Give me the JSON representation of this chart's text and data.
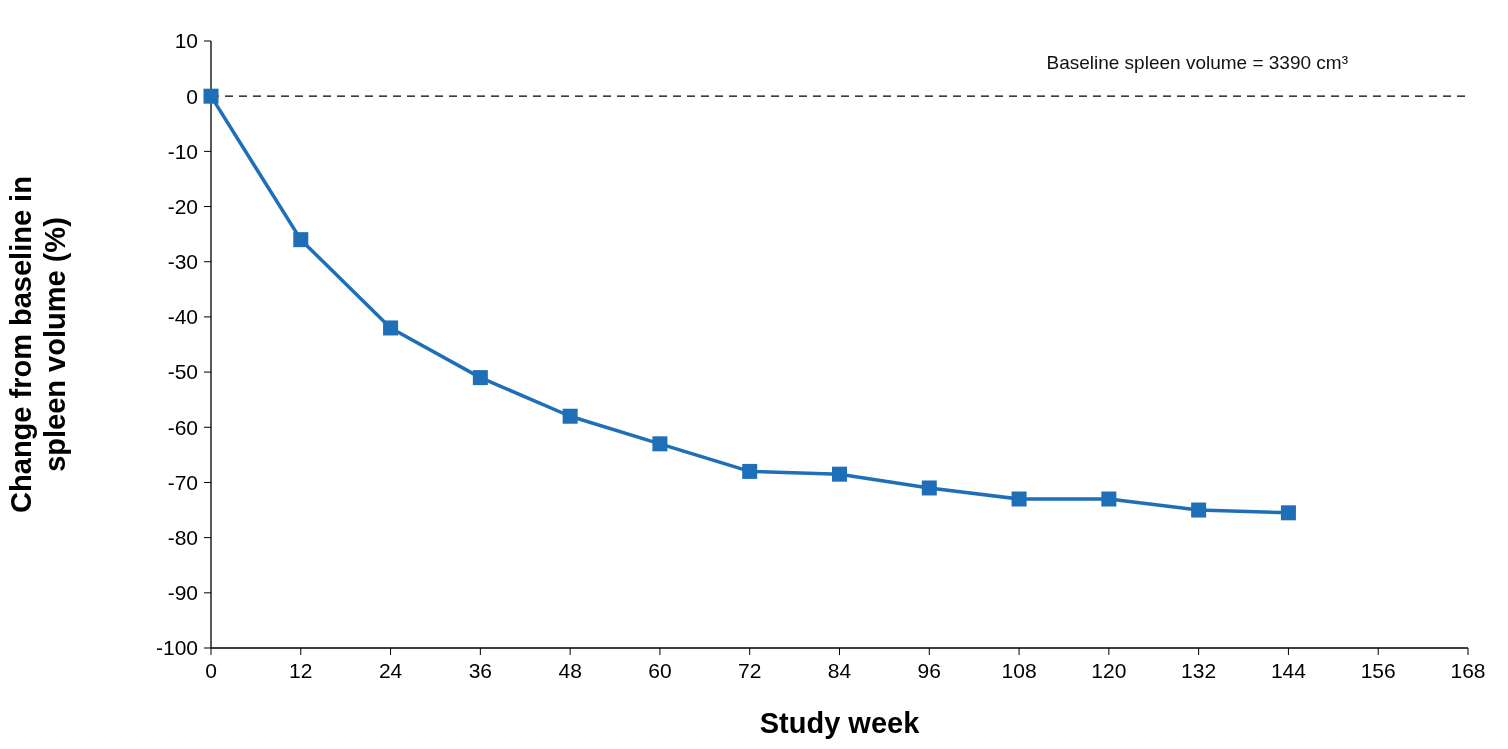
{
  "chart_data": {
    "type": "line",
    "xlabel": "Study week",
    "ylabel": "Change from baseline in spleen volume (%)",
    "x": [
      0,
      12,
      24,
      36,
      48,
      60,
      72,
      84,
      96,
      108,
      120,
      132,
      144
    ],
    "series": [
      {
        "color": "#1f6fb8",
        "values": [
          0,
          -26,
          -42,
          -51,
          -58,
          -63,
          -68,
          -68.5,
          -71,
          -73,
          -73,
          -75,
          -75.5
        ]
      }
    ],
    "xlim": [
      0,
      168
    ],
    "xticks": [
      0,
      12,
      24,
      36,
      48,
      60,
      72,
      84,
      96,
      108,
      120,
      132,
      144,
      156,
      168
    ],
    "ylim": [
      -100,
      10
    ],
    "yticks": [
      -100,
      -90,
      -80,
      -70,
      -60,
      -50,
      -40,
      -30,
      -20,
      -10,
      0,
      10
    ],
    "ref_lines": [
      {
        "axis": "y",
        "value": 0,
        "color": "#000000",
        "line_style": "dashed"
      }
    ],
    "annotations": [
      "Baseline spleen volume = 3390 cm³"
    ],
    "marker": "square",
    "line_style": "solid",
    "grid": false
  }
}
